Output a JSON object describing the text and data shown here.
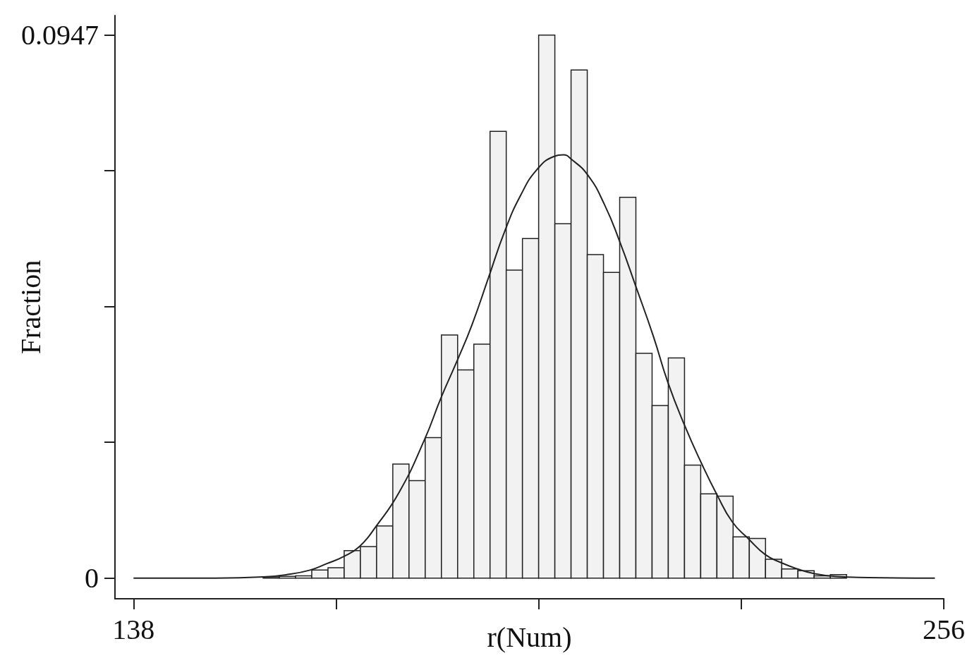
{
  "chart_data": {
    "type": "histogram",
    "xlabel": "r(Num)",
    "ylabel": "Fraction",
    "bins": [
      156.88,
      159.24,
      161.6,
      163.96,
      166.32,
      168.68,
      171.04,
      173.4,
      175.76,
      178.12,
      180.48,
      182.84,
      185.2,
      187.56,
      189.92,
      192.28,
      194.64,
      197,
      199.36,
      201.72,
      204.08,
      206.44,
      208.8,
      211.16,
      213.52,
      215.88,
      218.24,
      220.6,
      222.96,
      225.32,
      227.68,
      230.04,
      232.4,
      234.76,
      237.12,
      239.48,
      241.84
    ],
    "values": [
      0.0002,
      0.0003,
      0.0004,
      0.0014,
      0.0018,
      0.0048,
      0.0055,
      0.0091,
      0.0199,
      0.017,
      0.0245,
      0.0424,
      0.0363,
      0.0408,
      0.0779,
      0.0537,
      0.0592,
      0.0947,
      0.0618,
      0.0886,
      0.0564,
      0.0533,
      0.0664,
      0.0392,
      0.0301,
      0.0384,
      0.0197,
      0.0147,
      0.0143,
      0.0072,
      0.0069,
      0.0033,
      0.0016,
      0.0013,
      0.0004,
      0.0006
    ],
    "color": "#f2f2f2",
    "series": [
      {
        "type": "line",
        "color": "#222222",
        "x": [
          138,
          150,
          156.9,
          160.3,
          163.7,
          166.1,
          168.5,
          170.9,
          173.3,
          176.7,
          180.4,
          182.8,
          185.2,
          187.3,
          189.7,
          192.1,
          194.4,
          196.8,
          199.2,
          200.6,
          201.7,
          204.2,
          206.6,
          208.8,
          211.2,
          213.7,
          215.8,
          218.3,
          220.8,
          222.9,
          225.2,
          227.6,
          230,
          232.3,
          234.7,
          237.1,
          240.2,
          245,
          254.7
        ],
        "values": [
          0,
          0,
          0.0002,
          0.0006,
          0.0014,
          0.0025,
          0.0037,
          0.0055,
          0.009,
          0.015,
          0.0242,
          0.0315,
          0.0381,
          0.0442,
          0.0524,
          0.0606,
          0.0668,
          0.0713,
          0.0735,
          0.0738,
          0.0731,
          0.0702,
          0.0651,
          0.0587,
          0.0507,
          0.0422,
          0.0342,
          0.0265,
          0.0198,
          0.0147,
          0.0098,
          0.0068,
          0.0041,
          0.0027,
          0.0016,
          0.0008,
          0.0003,
          0.0001,
          0
        ]
      }
    ],
    "xlim": [
      135.3,
      256
    ],
    "xticks": [
      138,
      {
        "value": 167.5,
        "label": null
      },
      {
        "value": 197,
        "label": null
      },
      {
        "value": 226.5,
        "label": null
      },
      256
    ],
    "ylim": [
      -0.0036,
      0.0981
    ],
    "yticks": [
      0,
      {
        "value": 0.023675,
        "label": null
      },
      {
        "value": 0.04735,
        "label": null
      },
      {
        "value": 0.071025,
        "label": null
      },
      0.0947
    ]
  }
}
